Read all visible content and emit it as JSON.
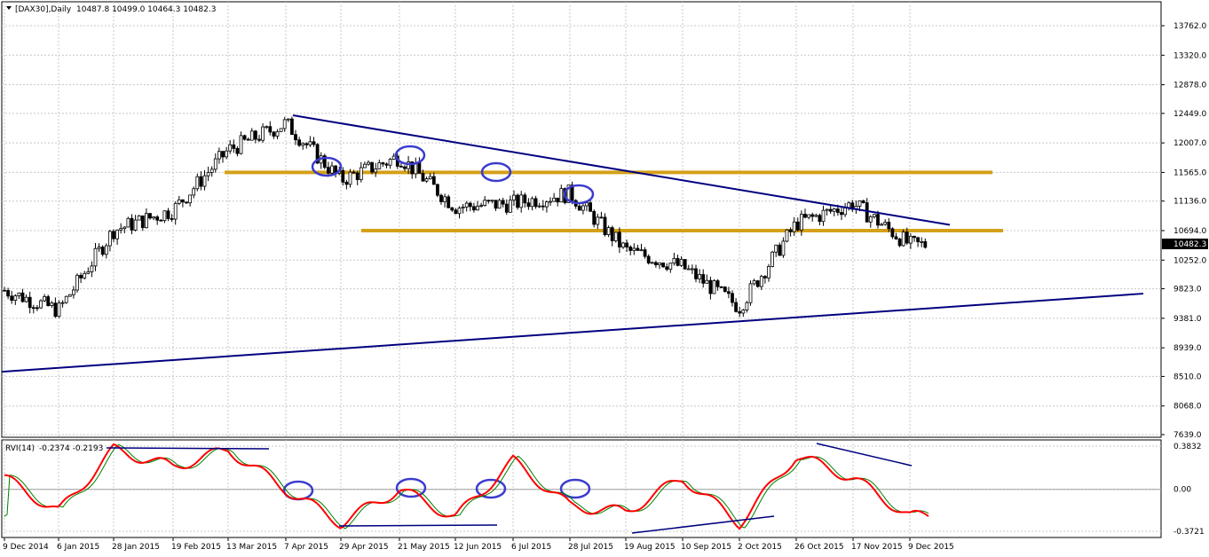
{
  "symbol_header": {
    "label": "[DAX30],Daily",
    "ohlc": "10487.8 10499.0 10464.3 10482.3"
  },
  "indicator_header": {
    "label": "RVI(14)",
    "values": "-0.2374 -0.2193"
  },
  "colors": {
    "background": "#ffffff",
    "candles": "#000000",
    "trendlines": "#00007f",
    "horizontal_levels": "#d4a017",
    "rvi_main": "#ff0000",
    "rvi_signal": "#007f00",
    "pattern_circles": "#3b3bcf"
  },
  "price_labels": [
    "13762.0",
    "13320.0",
    "12878.0",
    "12449.0",
    "12007.0",
    "11565.0",
    "11136.0",
    "10694.0",
    "10252.0",
    "9823.0",
    "9381.0",
    "8939.0",
    "8510.0",
    "8068.0",
    "7639.0"
  ],
  "current_price": "10482.3",
  "indicator_labels": [
    "0.3832",
    "0.00",
    "-0.3721"
  ],
  "date_labels": [
    "9 Dec 2014",
    "6 Jan 2015",
    "28 Jan 2015",
    "19 Feb 2015",
    "13 Mar 2015",
    "7 Apr 2015",
    "29 Apr 2015",
    "21 May 2015",
    "12 Jun 2015",
    "6 Jul 2015",
    "28 Jul 2015",
    "19 Aug 2015",
    "10 Sep 2015",
    "2 Oct 2015",
    "26 Oct 2015",
    "17 Nov 2015",
    "9 Dec 2015"
  ],
  "chart_data": [
    {
      "type": "candlestick",
      "title": "[DAX30],Daily",
      "ylim": [
        7639,
        13762
      ],
      "x_range": [
        "9 Dec 2014",
        "9 Dec 2015"
      ],
      "grid": true,
      "approx_closes": [
        [
          "9 Dec 2014",
          9800
        ],
        [
          "6 Jan 2015",
          9500
        ],
        [
          "28 Jan 2015",
          10700
        ],
        [
          "19 Feb 2015",
          11000
        ],
        [
          "13 Mar 2015",
          11900
        ],
        [
          "7 Apr 2015",
          12300
        ],
        [
          "29 Apr 2015",
          11450
        ],
        [
          "21 May 2015",
          11800
        ],
        [
          "12 Jun 2015",
          11050
        ],
        [
          "6 Jul 2015",
          11100
        ],
        [
          "28 Jul 2015",
          11250
        ],
        [
          "19 Aug 2015",
          10400
        ],
        [
          "10 Sep 2015",
          10150
        ],
        [
          "2 Oct 2015",
          9550
        ],
        [
          "26 Oct 2015",
          10800
        ],
        [
          "17 Nov 2015",
          11100
        ],
        [
          "9 Dec 2015",
          10482.3
        ]
      ],
      "horizontal_levels": [
        11565,
        10694
      ],
      "trendlines": [
        {
          "name": "descending",
          "from": [
            "7 Apr 2015",
            12420
          ],
          "to": [
            "9 Dec 2015",
            10780
          ]
        },
        {
          "name": "ascending",
          "from": [
            "9 Dec 2014",
            8580
          ],
          "to": [
            "after 9 Dec 2015",
            9750
          ]
        }
      ]
    },
    {
      "type": "line",
      "title": "RVI(14)",
      "ylim": [
        -0.3721,
        0.3832
      ],
      "latest": {
        "main": -0.2374,
        "signal": -0.2193
      },
      "approx_main": [
        [
          "9 Dec 2014",
          0.1
        ],
        [
          "6 Jan 2015",
          -0.2
        ],
        [
          "28 Jan 2015",
          0.35
        ],
        [
          "19 Feb 2015",
          0.2
        ],
        [
          "13 Mar 2015",
          0.35
        ],
        [
          "7 Apr 2015",
          0.0
        ],
        [
          "29 Apr 2015",
          -0.3
        ],
        [
          "21 May 2015",
          0.0
        ],
        [
          "12 Jun 2015",
          -0.25
        ],
        [
          "6 Jul 2015",
          0.25
        ],
        [
          "28 Jul 2015",
          -0.15
        ],
        [
          "19 Aug 2015",
          -0.2
        ],
        [
          "10 Sep 2015",
          0.1
        ],
        [
          "2 Oct 2015",
          -0.3
        ],
        [
          "26 Oct 2015",
          0.3
        ],
        [
          "17 Nov 2015",
          0.1
        ],
        [
          "9 Dec 2015",
          -0.24
        ]
      ]
    }
  ]
}
